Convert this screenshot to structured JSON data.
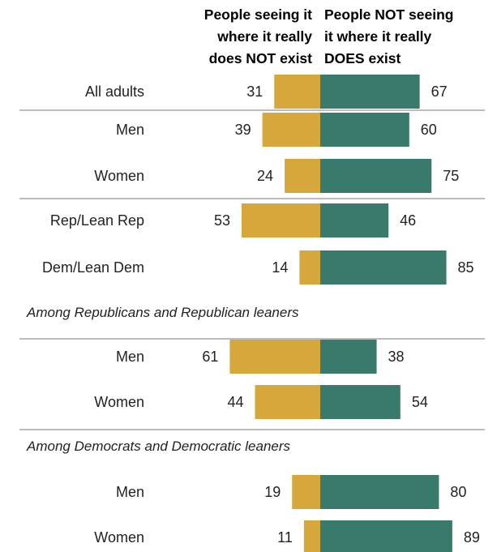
{
  "chart_data": {
    "type": "bar",
    "headers": {
      "left": [
        "People seeing it",
        "where it really",
        "does NOT exist"
      ],
      "right": [
        "People NOT seeing",
        "it where it really",
        "DOES exist"
      ]
    },
    "series": [
      {
        "name": "People seeing it where it really does NOT exist",
        "color": "#d6a73a"
      },
      {
        "name": "People NOT seeing it where it really DOES exist",
        "color": "#3a7a6c"
      }
    ],
    "rows": [
      {
        "label": "All adults",
        "left": 31,
        "right": 67
      },
      {
        "label": "Men",
        "left": 39,
        "right": 60
      },
      {
        "label": "Women",
        "left": 24,
        "right": 75
      },
      {
        "label": "Rep/Lean Rep",
        "left": 53,
        "right": 46
      },
      {
        "label": "Dem/Lean Dem",
        "left": 14,
        "right": 85
      },
      {
        "label": "Men",
        "left": 61,
        "right": 38
      },
      {
        "label": "Women",
        "left": 44,
        "right": 54
      },
      {
        "label": "Men",
        "left": 19,
        "right": 80
      },
      {
        "label": "Women",
        "left": 11,
        "right": 89
      }
    ],
    "group_labels": [
      "Among Republicans and Republican leaners",
      "Among Democrats and Democratic leaners"
    ]
  }
}
